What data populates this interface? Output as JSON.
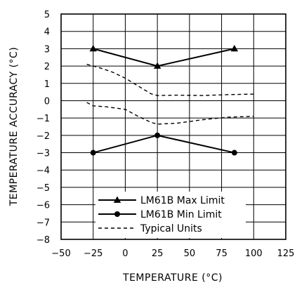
{
  "chart_data": {
    "type": "line",
    "xlabel": "TEMPERATURE (°C)",
    "ylabel": "TEMPERATURE ACCURACY (°C)",
    "xlim": [
      -50,
      125
    ],
    "ylim": [
      -8,
      5
    ],
    "xticks": [
      -50,
      -25,
      0,
      25,
      50,
      75,
      100,
      125
    ],
    "yticks": [
      -8,
      -7,
      -6,
      -5,
      -4,
      -3,
      -2,
      -1,
      0,
      1,
      2,
      3,
      4,
      5
    ],
    "grid": true,
    "legend_position": "bottom-left",
    "series": [
      {
        "name": "LM61B Max Limit",
        "marker": "triangle",
        "style": "solid",
        "x": [
          -25,
          25,
          85
        ],
        "y": [
          3,
          2,
          3
        ]
      },
      {
        "name": "LM61B Min Limit",
        "marker": "circle",
        "style": "solid",
        "x": [
          -25,
          25,
          85
        ],
        "y": [
          -3,
          -2,
          -3
        ]
      },
      {
        "name": "Typical Units",
        "marker": "none",
        "style": "dashed",
        "x": [
          -30,
          -20,
          -10,
          0,
          10,
          20,
          25,
          40,
          60,
          80,
          100
        ],
        "y": [
          2.1,
          1.9,
          1.65,
          1.3,
          0.85,
          0.4,
          0.3,
          0.32,
          0.3,
          0.35,
          0.38
        ]
      },
      {
        "name": "Typical Units",
        "marker": "none",
        "style": "dashed",
        "x": [
          -30,
          -25,
          -15,
          0,
          10,
          20,
          25,
          40,
          60,
          80,
          100
        ],
        "y": [
          -0.1,
          -0.3,
          -0.35,
          -0.5,
          -0.9,
          -1.25,
          -1.35,
          -1.3,
          -1.1,
          -0.95,
          -0.9
        ]
      }
    ]
  }
}
